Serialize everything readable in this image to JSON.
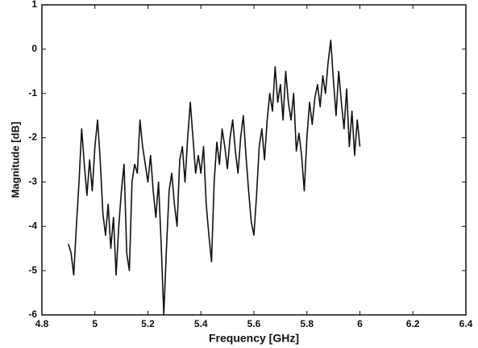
{
  "chart_data": {
    "type": "line",
    "x_label": "Frequency [GHz]",
    "y_label": "Magnitude [dB]",
    "x": [
      4.9,
      4.91,
      4.92,
      4.93,
      4.94,
      4.95,
      4.96,
      4.97,
      4.98,
      4.99,
      5.0,
      5.01,
      5.02,
      5.03,
      5.04,
      5.05,
      5.06,
      5.07,
      5.08,
      5.09,
      5.1,
      5.11,
      5.12,
      5.13,
      5.14,
      5.15,
      5.16,
      5.17,
      5.18,
      5.19,
      5.2,
      5.21,
      5.22,
      5.23,
      5.24,
      5.25,
      5.26,
      5.27,
      5.28,
      5.29,
      5.3,
      5.31,
      5.32,
      5.33,
      5.34,
      5.35,
      5.36,
      5.37,
      5.38,
      5.39,
      5.4,
      5.41,
      5.42,
      5.43,
      5.44,
      5.45,
      5.46,
      5.47,
      5.48,
      5.49,
      5.5,
      5.51,
      5.52,
      5.53,
      5.54,
      5.55,
      5.56,
      5.57,
      5.58,
      5.59,
      5.6,
      5.61,
      5.62,
      5.63,
      5.64,
      5.65,
      5.66,
      5.67,
      5.68,
      5.69,
      5.7,
      5.71,
      5.72,
      5.73,
      5.74,
      5.75,
      5.76,
      5.77,
      5.78,
      5.79,
      5.8,
      5.81,
      5.82,
      5.83,
      5.84,
      5.85,
      5.86,
      5.87,
      5.88,
      5.89,
      5.9,
      5.91,
      5.92,
      5.93,
      5.94,
      5.95,
      5.96,
      5.97,
      5.98,
      5.99,
      6.0
    ],
    "values": [
      -4.4,
      -4.6,
      -5.1,
      -4.0,
      -3.0,
      -1.8,
      -2.6,
      -3.3,
      -2.5,
      -3.2,
      -2.2,
      -1.6,
      -2.5,
      -3.7,
      -4.2,
      -3.5,
      -4.5,
      -3.8,
      -5.1,
      -4.0,
      -3.2,
      -2.6,
      -4.6,
      -5.0,
      -3.0,
      -2.6,
      -2.8,
      -1.6,
      -2.2,
      -2.6,
      -3.0,
      -2.4,
      -3.2,
      -3.8,
      -3.0,
      -4.4,
      -6.0,
      -4.5,
      -3.2,
      -2.8,
      -3.5,
      -4.0,
      -2.5,
      -2.2,
      -3.0,
      -2.0,
      -1.2,
      -2.0,
      -2.8,
      -2.4,
      -2.8,
      -2.2,
      -3.5,
      -4.2,
      -4.8,
      -3.0,
      -2.1,
      -2.6,
      -1.8,
      -2.2,
      -2.7,
      -2.0,
      -1.6,
      -2.3,
      -2.8,
      -2.0,
      -1.5,
      -2.4,
      -3.2,
      -3.9,
      -4.2,
      -3.3,
      -2.2,
      -1.8,
      -2.5,
      -1.6,
      -1.0,
      -1.4,
      -0.4,
      -1.2,
      -0.8,
      -1.6,
      -0.5,
      -1.2,
      -1.6,
      -1.0,
      -2.3,
      -1.9,
      -2.4,
      -3.2,
      -2.0,
      -1.2,
      -1.7,
      -1.1,
      -0.8,
      -1.3,
      -0.6,
      -1.0,
      -0.3,
      0.2,
      -0.7,
      -1.5,
      -0.5,
      -1.2,
      -1.8,
      -0.9,
      -2.2,
      -1.4,
      -2.4,
      -1.6,
      -2.2
    ],
    "color": "#111111",
    "xlim": [
      4.8,
      6.4
    ],
    "xticks": [
      4.8,
      5,
      5.2,
      5.4,
      5.6,
      5.8,
      6,
      6.2,
      6.4
    ],
    "ylim": [
      -6,
      1
    ],
    "yticks": [
      -6,
      -5,
      -4,
      -3,
      -2,
      -1,
      0,
      1
    ],
    "grid": false
  }
}
